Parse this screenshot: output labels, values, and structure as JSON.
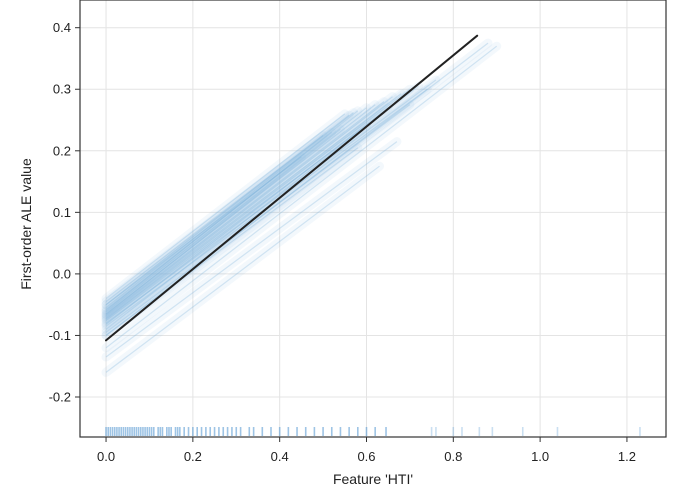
{
  "chart_data": {
    "type": "line",
    "title": "",
    "xlabel": "Feature 'HTI'",
    "ylabel": "First-order ALE value",
    "xlim": [
      -0.06,
      1.29
    ],
    "ylim": [
      -0.265,
      0.445
    ],
    "xticks": [
      0.0,
      0.2,
      0.4,
      0.6,
      0.8,
      1.0,
      1.2
    ],
    "xtick_labels": [
      "0.0",
      "0.2",
      "0.4",
      "0.6",
      "0.8",
      "1.0",
      "1.2"
    ],
    "yticks": [
      -0.2,
      -0.1,
      0.0,
      0.1,
      0.2,
      0.3,
      0.4
    ],
    "ytick_labels": [
      "-0.2",
      "-0.1",
      "0.0",
      "0.1",
      "0.2",
      "0.3",
      "0.4"
    ],
    "grid": true,
    "legend": "none",
    "colors": {
      "mean_line": "#222222",
      "ice_lines": "#7eb3dc",
      "rug": "#4f94cf",
      "grid": "#e4e4e4",
      "frame": "#333333"
    },
    "series": [
      {
        "role": "mean",
        "x": [
          0.0,
          0.855
        ],
        "y": [
          -0.108,
          0.387
        ]
      }
    ],
    "ice_curves": [
      {
        "x": [
          0.0,
          0.55
        ],
        "y": [
          -0.04,
          0.26
        ]
      },
      {
        "x": [
          0.0,
          0.56
        ],
        "y": [
          -0.05,
          0.258
        ]
      },
      {
        "x": [
          0.0,
          0.57
        ],
        "y": [
          -0.055,
          0.262
        ]
      },
      {
        "x": [
          0.0,
          0.58
        ],
        "y": [
          -0.06,
          0.265
        ]
      },
      {
        "x": [
          0.0,
          0.6
        ],
        "y": [
          -0.062,
          0.27
        ]
      },
      {
        "x": [
          0.0,
          0.62
        ],
        "y": [
          -0.065,
          0.275
        ]
      },
      {
        "x": [
          0.0,
          0.64
        ],
        "y": [
          -0.068,
          0.28
        ]
      },
      {
        "x": [
          0.0,
          0.66
        ],
        "y": [
          -0.07,
          0.288
        ]
      },
      {
        "x": [
          0.0,
          0.68
        ],
        "y": [
          -0.072,
          0.293
        ]
      },
      {
        "x": [
          0.0,
          0.7
        ],
        "y": [
          -0.074,
          0.3
        ]
      },
      {
        "x": [
          0.0,
          0.72
        ],
        "y": [
          -0.076,
          0.305
        ]
      },
      {
        "x": [
          0.0,
          0.5
        ],
        "y": [
          -0.045,
          0.225
        ]
      },
      {
        "x": [
          0.0,
          0.52
        ],
        "y": [
          -0.058,
          0.23
        ]
      },
      {
        "x": [
          0.0,
          0.54
        ],
        "y": [
          -0.066,
          0.235
        ]
      },
      {
        "x": [
          0.0,
          0.65
        ],
        "y": [
          -0.082,
          0.27
        ]
      },
      {
        "x": [
          0.0,
          0.74
        ],
        "y": [
          -0.085,
          0.3
        ]
      },
      {
        "x": [
          0.0,
          0.6
        ],
        "y": [
          -0.09,
          0.24
        ]
      },
      {
        "x": [
          0.0,
          0.88
        ],
        "y": [
          -0.1,
          0.375
        ]
      },
      {
        "x": [
          0.0,
          0.45
        ],
        "y": [
          -0.05,
          0.19
        ]
      },
      {
        "x": [
          0.0,
          0.76
        ],
        "y": [
          -0.08,
          0.315
        ]
      },
      {
        "x": [
          0.0,
          0.67
        ],
        "y": [
          -0.135,
          0.215
        ]
      },
      {
        "x": [
          0.0,
          0.63
        ],
        "y": [
          -0.16,
          0.175
        ]
      },
      {
        "x": [
          0.0,
          0.9
        ],
        "y": [
          -0.12,
          0.37
        ]
      },
      {
        "x": [
          0.0,
          0.58
        ],
        "y": [
          -0.1,
          0.205
        ]
      },
      {
        "x": [
          0.0,
          0.7
        ],
        "y": [
          -0.095,
          0.275
        ]
      }
    ],
    "rug_x": [
      0.0,
      0.005,
      0.01,
      0.015,
      0.02,
      0.025,
      0.03,
      0.035,
      0.04,
      0.045,
      0.05,
      0.055,
      0.06,
      0.065,
      0.07,
      0.075,
      0.08,
      0.085,
      0.09,
      0.095,
      0.1,
      0.105,
      0.11,
      0.12,
      0.125,
      0.13,
      0.14,
      0.145,
      0.15,
      0.16,
      0.165,
      0.17,
      0.18,
      0.19,
      0.2,
      0.21,
      0.22,
      0.23,
      0.24,
      0.25,
      0.26,
      0.27,
      0.28,
      0.29,
      0.3,
      0.31,
      0.33,
      0.34,
      0.36,
      0.38,
      0.4,
      0.42,
      0.44,
      0.46,
      0.48,
      0.5,
      0.52,
      0.54,
      0.56,
      0.58,
      0.6,
      0.62,
      0.645,
      0.75,
      0.76,
      0.8,
      0.82,
      0.86,
      0.89,
      0.96,
      1.04,
      1.23
    ]
  }
}
